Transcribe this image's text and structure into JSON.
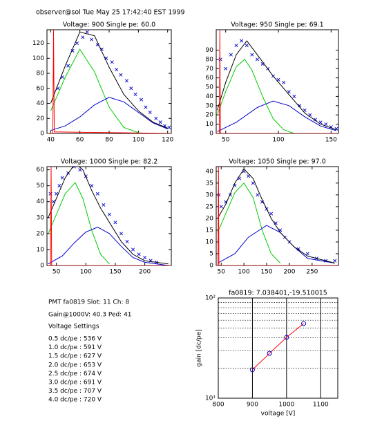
{
  "header": "observer@sol  Tue May 25 17:42:40 EST 1999",
  "info": {
    "lines": [
      "PMT fa0819 Slot: 11 Ch: 8",
      "Gain@1000V: 40.3 Ped: 41",
      "Voltage Settings",
      "0.5 dc/pe : 536 V",
      "1.0 dc/pe : 591 V",
      "1.5 dc/pe : 627 V",
      "2.0 dc/pe : 653 V",
      "2.5 dc/pe : 674 V",
      "3.0 dc/pe : 691 V",
      "3.5 dc/pe : 707 V",
      "4.0 dc/pe : 720 V"
    ]
  },
  "chart_data": [
    {
      "type": "scatter",
      "title": "Voltage: 900 Single pe: 60.0",
      "xlim": [
        37.5,
        122.5
      ],
      "xticks": [
        40,
        60,
        80,
        100,
        120
      ],
      "ylim": [
        0,
        138
      ],
      "yticks": [
        0,
        20,
        40,
        60,
        80,
        100,
        120
      ],
      "series": [
        {
          "mode": "markers",
          "color": "#0000cc",
          "x": [
            45,
            48,
            52,
            55,
            58,
            62,
            65,
            68,
            72,
            75,
            78,
            82,
            85,
            88,
            92,
            95,
            98,
            102,
            105,
            108,
            112,
            115,
            118,
            121
          ],
          "values": [
            60,
            75,
            90,
            110,
            120,
            128,
            135,
            125,
            118,
            112,
            100,
            95,
            85,
            78,
            70,
            60,
            52,
            45,
            35,
            28,
            20,
            15,
            10,
            8
          ]
        },
        {
          "mode": "lines",
          "color": "#00cc00",
          "x": [
            40,
            50,
            60,
            70,
            80,
            90,
            100
          ],
          "values": [
            30,
            75,
            112,
            82,
            35,
            8,
            1
          ]
        },
        {
          "mode": "lines",
          "color": "#0000cc",
          "x": [
            40,
            50,
            60,
            70,
            80,
            90,
            100,
            110,
            120
          ],
          "values": [
            4,
            10,
            22,
            38,
            48,
            42,
            28,
            14,
            6
          ]
        },
        {
          "mode": "lines",
          "color": "#000000",
          "x": [
            40,
            50,
            60,
            70,
            80,
            90,
            100,
            110,
            120
          ],
          "values": [
            40,
            90,
            135,
            130,
            88,
            52,
            30,
            15,
            7
          ]
        },
        {
          "mode": "lines",
          "color": "#ff0000",
          "x": [
            37.5,
            41.5,
            42,
            42.5,
            122.5
          ],
          "values": [
            0,
            0,
            138,
            2,
            0
          ]
        }
      ]
    },
    {
      "type": "scatter",
      "title": "Voltage: 950 Single pe: 69.1",
      "xlim": [
        41,
        157
      ],
      "xticks": [
        50,
        100,
        150
      ],
      "ylim": [
        0,
        112
      ],
      "yticks": [
        0,
        10,
        20,
        30,
        40,
        50,
        60,
        70,
        80,
        90
      ],
      "series": [
        {
          "mode": "markers",
          "color": "#0000cc",
          "x": [
            45,
            50,
            55,
            60,
            65,
            70,
            75,
            80,
            85,
            90,
            95,
            100,
            105,
            110,
            115,
            120,
            125,
            130,
            135,
            140,
            145,
            150,
            155
          ],
          "values": [
            80,
            70,
            85,
            95,
            100,
            95,
            85,
            80,
            75,
            70,
            62,
            58,
            55,
            45,
            40,
            30,
            25,
            20,
            15,
            12,
            10,
            7,
            5
          ]
        },
        {
          "mode": "lines",
          "color": "#00cc00",
          "x": [
            42,
            50,
            60,
            68,
            75,
            85,
            95,
            105,
            115
          ],
          "values": [
            20,
            45,
            72,
            80,
            68,
            40,
            16,
            4,
            0
          ]
        },
        {
          "mode": "lines",
          "color": "#0000cc",
          "x": [
            42,
            60,
            80,
            95,
            110,
            125,
            140,
            155
          ],
          "values": [
            2,
            12,
            28,
            35,
            30,
            18,
            8,
            3
          ]
        },
        {
          "mode": "lines",
          "color": "#000000",
          "x": [
            42,
            50,
            60,
            70,
            80,
            95,
            110,
            125,
            140,
            155
          ],
          "values": [
            25,
            55,
            85,
            100,
            85,
            62,
            42,
            22,
            10,
            4
          ]
        },
        {
          "mode": "lines",
          "color": "#ff0000",
          "x": [
            41,
            44,
            44.5,
            45,
            157
          ],
          "values": [
            0,
            0,
            112,
            0,
            0
          ]
        }
      ]
    },
    {
      "type": "scatter",
      "title": "Voltage: 1000 Single pe: 82.2",
      "xlim": [
        34,
        245
      ],
      "xticks": [
        50,
        100,
        150,
        200
      ],
      "ylim": [
        0,
        62
      ],
      "yticks": [
        0,
        10,
        20,
        30,
        40,
        50,
        60
      ],
      "series": [
        {
          "mode": "markers",
          "color": "#0000cc",
          "x": [
            40,
            45,
            50,
            55,
            60,
            70,
            80,
            90,
            100,
            110,
            120,
            130,
            140,
            150,
            160,
            170,
            180,
            190,
            200,
            210,
            220
          ],
          "values": [
            45,
            40,
            45,
            50,
            55,
            58,
            62,
            60,
            56,
            50,
            45,
            38,
            32,
            27,
            20,
            15,
            10,
            7,
            5,
            3,
            2
          ]
        },
        {
          "mode": "lines",
          "color": "#00cc00",
          "x": [
            36,
            50,
            65,
            82,
            95,
            110,
            125,
            140
          ],
          "values": [
            20,
            32,
            45,
            52,
            42,
            22,
            7,
            1
          ]
        },
        {
          "mode": "lines",
          "color": "#0000cc",
          "x": [
            36,
            60,
            80,
            100,
            120,
            140,
            160,
            180,
            200,
            240
          ],
          "values": [
            1,
            6,
            14,
            21,
            24,
            20,
            12,
            5,
            2,
            0
          ]
        },
        {
          "mode": "lines",
          "color": "#000000",
          "x": [
            36,
            50,
            65,
            82,
            95,
            110,
            125,
            140,
            160,
            180,
            200,
            240
          ],
          "values": [
            30,
            42,
            55,
            64,
            60,
            47,
            36,
            27,
            15,
            7,
            3,
            1
          ]
        },
        {
          "mode": "lines",
          "color": "#ff0000",
          "x": [
            34,
            40,
            41,
            42,
            245
          ],
          "values": [
            0,
            0,
            62,
            0,
            0
          ]
        }
      ]
    },
    {
      "type": "scatter",
      "title": "Voltage: 1050 Single pe: 97.0",
      "xlim": [
        39,
        308
      ],
      "xticks": [
        50,
        100,
        150,
        200,
        250
      ],
      "ylim": [
        0,
        42
      ],
      "yticks": [
        0,
        5,
        10,
        15,
        20,
        25,
        30,
        35,
        40
      ],
      "series": [
        {
          "mode": "markers",
          "color": "#0000cc",
          "x": [
            45,
            50,
            60,
            70,
            80,
            90,
            100,
            110,
            120,
            130,
            140,
            150,
            160,
            170,
            180,
            190,
            200,
            220,
            240,
            260,
            280,
            300
          ],
          "values": [
            30,
            25,
            27,
            30,
            34,
            37,
            40,
            38,
            35,
            30,
            27,
            24,
            22,
            18,
            15,
            12,
            10,
            7,
            5,
            3,
            2,
            2
          ]
        },
        {
          "mode": "lines",
          "color": "#00cc00",
          "x": [
            42,
            60,
            80,
            100,
            120,
            140,
            160,
            180
          ],
          "values": [
            14,
            22,
            31,
            35,
            29,
            15,
            5,
            1
          ]
        },
        {
          "mode": "lines",
          "color": "#0000cc",
          "x": [
            42,
            80,
            110,
            150,
            180,
            210,
            240,
            300
          ],
          "values": [
            1,
            5,
            12,
            17,
            14,
            8,
            3,
            1
          ]
        },
        {
          "mode": "lines",
          "color": "#000000",
          "x": [
            42,
            60,
            80,
            100,
            120,
            140,
            160,
            180,
            210,
            240,
            300
          ],
          "values": [
            20,
            26,
            35,
            41,
            37,
            28,
            20,
            14,
            8,
            4,
            1
          ]
        },
        {
          "mode": "lines",
          "color": "#ff0000",
          "x": [
            39,
            43,
            44,
            45,
            308
          ],
          "values": [
            0,
            0,
            42,
            0,
            0
          ]
        }
      ]
    },
    {
      "type": "line",
      "title": "fa0819: 7.038401,-19.510015",
      "xlabel": "voltage [V]",
      "ylabel": "gain [dc/pe]",
      "xlim": [
        800,
        1150
      ],
      "xticks": [
        800,
        900,
        1000,
        1100
      ],
      "ylim": [
        10,
        100
      ],
      "ylog": true,
      "yticks": [
        {
          "value": 10,
          "label": "10¹"
        },
        {
          "value": 100,
          "label": "10²"
        }
      ],
      "yminor": [
        20,
        30,
        40,
        50,
        60,
        70,
        80,
        90
      ],
      "series": [
        {
          "mode": "lines+markers",
          "color": "#ff0000",
          "marker_color": "#0000cc",
          "x": [
            900,
            950,
            1000,
            1050
          ],
          "values": [
            19.2,
            28,
            40.5,
            55.6
          ]
        }
      ]
    }
  ]
}
